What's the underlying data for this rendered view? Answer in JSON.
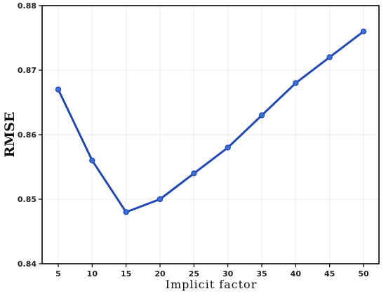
{
  "chart_data": {
    "type": "line",
    "title": "",
    "xlabel": "Implicit factor",
    "ylabel": "RMSE",
    "x": [
      5,
      10,
      15,
      20,
      25,
      30,
      35,
      40,
      45,
      50
    ],
    "x_tick_labels": [
      "5",
      "10",
      "15",
      "20",
      "25",
      "30",
      "35",
      "40",
      "45",
      "50"
    ],
    "y_ticks": [
      0.84,
      0.85,
      0.86,
      0.87,
      0.88
    ],
    "y_tick_labels": [
      "0.84",
      "0.85",
      "0.86",
      "0.87",
      "0.88"
    ],
    "ylim": [
      0.84,
      0.88
    ],
    "grid": true,
    "legend": "none",
    "series": [
      {
        "values": [
          0.867,
          0.856,
          0.848,
          0.85,
          0.854,
          0.858,
          0.863,
          0.868,
          0.872,
          0.876
        ],
        "color": "#1f47b8",
        "marker_color": "#3a6fd6"
      }
    ]
  }
}
